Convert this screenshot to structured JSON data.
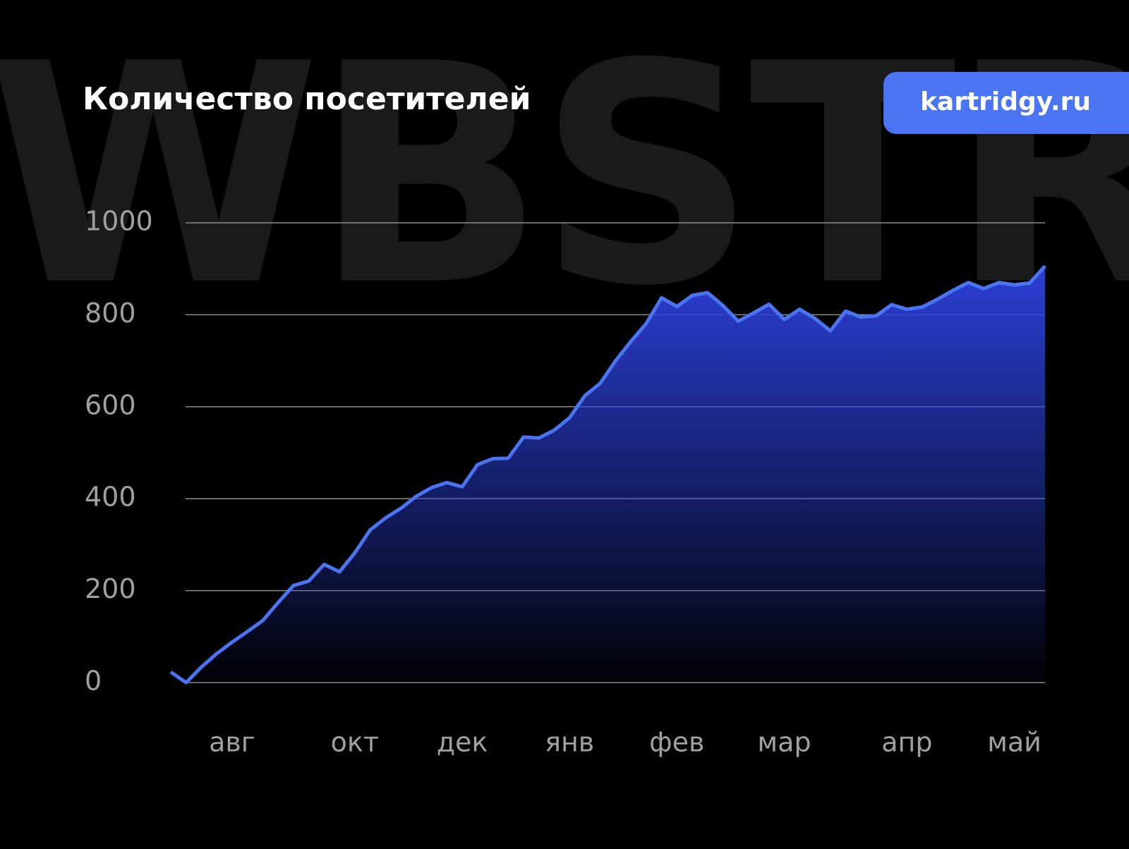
{
  "watermark": "WBSTR",
  "badge": "kartridgy.ru",
  "chart_data": {
    "type": "area",
    "title": "Количество посетителей",
    "categories": [
      null,
      null,
      null,
      null,
      "авг",
      null,
      null,
      null,
      null,
      null,
      null,
      null,
      "окт",
      null,
      null,
      null,
      null,
      null,
      null,
      "дек",
      null,
      null,
      null,
      null,
      null,
      null,
      "янв",
      null,
      null,
      null,
      null,
      null,
      null,
      "фев",
      null,
      null,
      null,
      null,
      null,
      null,
      "мар",
      null,
      null,
      null,
      null,
      null,
      null,
      null,
      "апр",
      null,
      null,
      null,
      null,
      null,
      null,
      "май",
      null,
      null
    ],
    "series": [
      {
        "name": null,
        "color": "#4a74f2",
        "values": [
          23,
          0,
          34,
          63,
          88,
          111,
          135,
          174,
          211,
          221,
          257,
          241,
          282,
          332,
          358,
          379,
          405,
          424,
          435,
          426,
          474,
          487,
          488,
          534,
          532,
          549,
          576,
          624,
          651,
          700,
          742,
          781,
          837,
          818,
          842,
          848,
          820,
          786,
          804,
          823,
          790,
          812,
          792,
          765,
          808,
          795,
          798,
          822,
          812,
          817,
          834,
          853,
          870,
          857,
          870,
          865,
          869,
          906
        ]
      }
    ],
    "ylim": [
      0,
      1000
    ],
    "yticks": [
      0,
      200,
      400,
      600,
      800,
      1000
    ],
    "grid": true
  }
}
